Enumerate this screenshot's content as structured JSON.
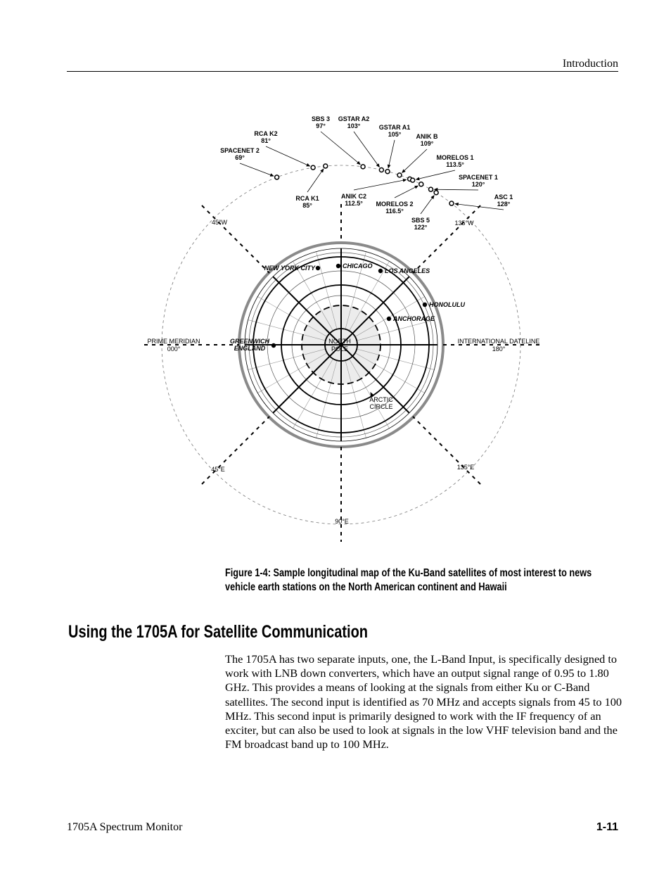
{
  "header": {
    "section": "Introduction"
  },
  "diagram": {
    "reference_labels": {
      "prime_meridian": "PRIME MERIDIAN",
      "prime_meridian_deg": "000°",
      "dateline": "INTERNATIONAL DATELINE",
      "dateline_deg": "180°",
      "w45": "45°W",
      "w135": "135°W",
      "e45": "45°E",
      "e135": "135°E",
      "e90": "90°E",
      "north_pole_1": "NORTH",
      "north_pole_2": "POLE",
      "arctic_1": "ARCTIC",
      "arctic_2": "CIRCLE"
    },
    "satellites": [
      {
        "name": "SPACENET 2",
        "deg": "69°",
        "lon": 69
      },
      {
        "name": "RCA K2",
        "deg": "81°",
        "lon": 81
      },
      {
        "name": "RCA K1",
        "deg": "85°",
        "lon": 85
      },
      {
        "name": "SBS 3",
        "deg": "97°",
        "lon": 97
      },
      {
        "name": "GSTAR A2",
        "deg": "103°",
        "lon": 103
      },
      {
        "name": "GSTAR A1",
        "deg": "105°",
        "lon": 105
      },
      {
        "name": "ANIK B",
        "deg": "109°",
        "lon": 109
      },
      {
        "name": "ANIK C2",
        "deg": "112.5°",
        "lon": 112.5
      },
      {
        "name": "MORELOS 1",
        "deg": "113.5°",
        "lon": 113.5
      },
      {
        "name": "MORELOS 2",
        "deg": "116.5°",
        "lon": 116.5
      },
      {
        "name": "SPACENET 1",
        "deg": "120°",
        "lon": 120
      },
      {
        "name": "SBS 5",
        "deg": "122°",
        "lon": 122
      },
      {
        "name": "ASC 1",
        "deg": "128°",
        "lon": 128
      }
    ],
    "cities": [
      {
        "name": "NEW YORK CITY"
      },
      {
        "name": "CHICAGO"
      },
      {
        "name": "LOS ANGELES"
      },
      {
        "name": "HONOLULU"
      },
      {
        "name": "ANCHORAGE"
      },
      {
        "name": "GREENWICH",
        "name2": "ENGLAND"
      }
    ]
  },
  "caption": "Figure 1-4: Sample longitudinal map of the Ku-Band satellites of most interest to news vehicle earth stations on the North American continent and Hawaii",
  "section_title": "Using the 1705A for Satellite Communication",
  "body": "The 1705A has two separate inputs, one, the L-Band Input, is specifically designed to work with LNB down converters, which have an output signal range of 0.95 to 1.80 GHz.  This provides a means of looking at the signals from either Ku or C-Band satellites.  The second input is identified as 70 MHz and accepts signals from 45 to 100 MHz.  This second input is primarily designed to work with the IF frequency of an exciter, but can also be used to look at signals in the low VHF television band and the FM broadcast band up to 100 MHz.",
  "footer": {
    "manual": "1705A Spectrum Monitor",
    "page": "1-11"
  }
}
